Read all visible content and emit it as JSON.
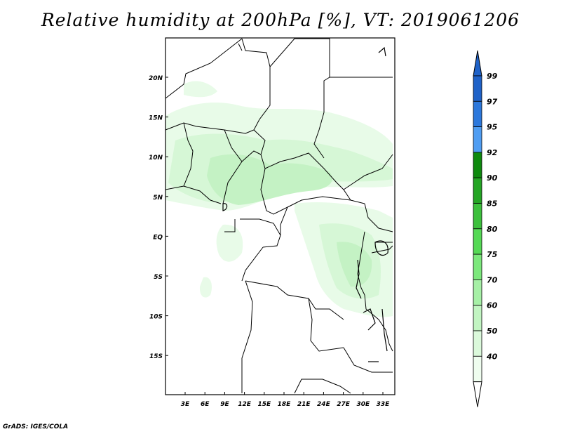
{
  "title": "Relative humidity at 200hPa [%], VT: 2019061206",
  "credit": "GrADS: IGES/COLA",
  "map": {
    "lat_labels": [
      "20N",
      "15N",
      "10N",
      "5N",
      "EQ",
      "5S",
      "10S",
      "15S"
    ],
    "lon_labels": [
      "3E",
      "6E",
      "9E",
      "12E",
      "15E",
      "18E",
      "21E",
      "24E",
      "27E",
      "30E",
      "33E"
    ]
  },
  "colorbar": {
    "labels": [
      "99",
      "97",
      "95",
      "92",
      "90",
      "85",
      "80",
      "75",
      "70",
      "60",
      "50",
      "40"
    ],
    "colors": [
      "#1f62c8",
      "#2c78dc",
      "#4f9df2",
      "#0e8a0e",
      "#24a524",
      "#3cc03c",
      "#55d955",
      "#7ce87c",
      "#a6f0a6",
      "#c2f5c2",
      "#dbf9db",
      "#effdef"
    ],
    "triangle_top_color": "#1f62c8",
    "triangle_bottom_color": "#ffffff"
  }
}
